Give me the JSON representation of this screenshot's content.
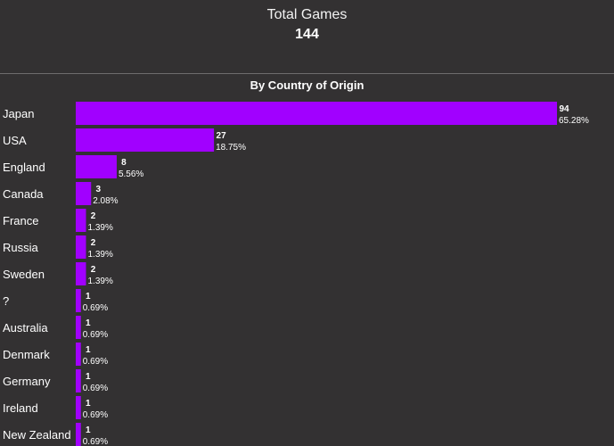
{
  "header": {
    "total_label": "Total Games",
    "total_value": "144"
  },
  "colors": {
    "background": "#333132",
    "bar": "#a100ff",
    "text": "#ffffff"
  },
  "chart_data": {
    "type": "bar",
    "orientation": "horizontal",
    "title": "By Country of Origin",
    "categories": [
      "Japan",
      "USA",
      "England",
      "Canada",
      "France",
      "Russia",
      "Sweden",
      "?",
      "Australia",
      "Denmark",
      "Germany",
      "Ireland",
      "New Zealand"
    ],
    "values": [
      94,
      27,
      8,
      3,
      2,
      2,
      2,
      1,
      1,
      1,
      1,
      1,
      1
    ],
    "percent_labels": [
      "65.28%",
      "18.75%",
      "5.56%",
      "2.08%",
      "1.39%",
      "1.39%",
      "1.39%",
      "0.69%",
      "0.69%",
      "0.69%",
      "0.69%",
      "0.69%",
      "0.69%"
    ],
    "xlim": [
      0,
      94
    ],
    "grid": false,
    "legend": "none"
  }
}
